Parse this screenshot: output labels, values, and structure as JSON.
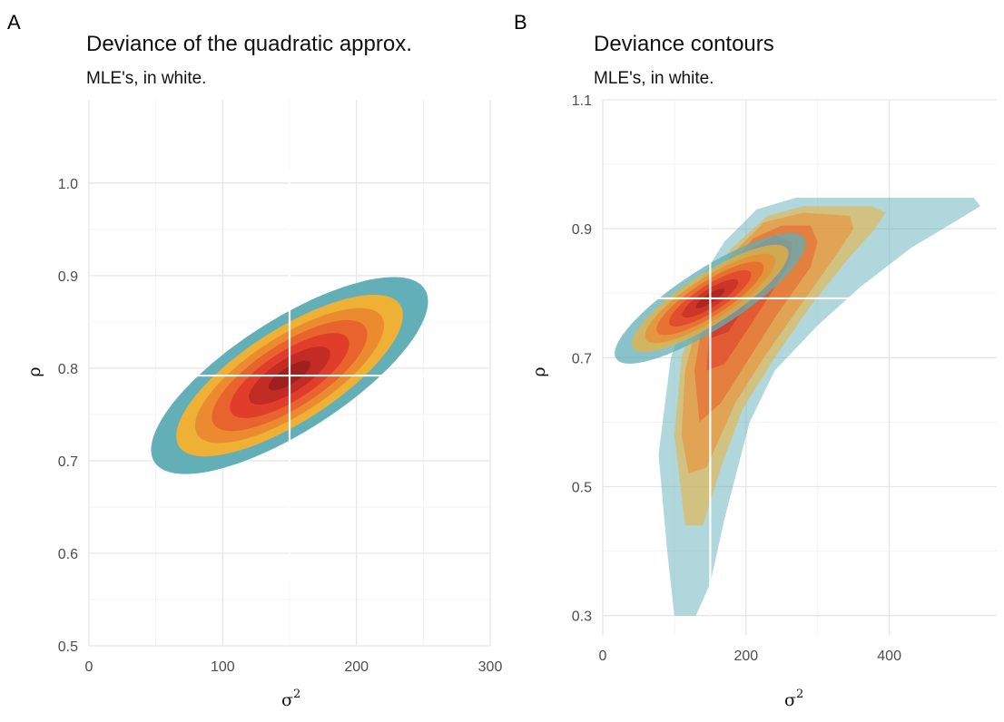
{
  "colors": {
    "levels": [
      "#62afb7",
      "#efb036",
      "#ec8a30",
      "#e8632d",
      "#e03e2b",
      "#c22c25",
      "#a11f1f",
      "#821719"
    ],
    "crosshair": "#ffffff"
  },
  "chart_data": [
    {
      "type": "contour",
      "tag": "A",
      "title": "Deviance of the quadratic approx.",
      "subtitle": "MLE's, in white.",
      "xlabel": "σ",
      "xlabel_sup": "2",
      "ylabel": "ρ",
      "xlim": [
        0,
        300
      ],
      "ylim": [
        0.5,
        1.09
      ],
      "xticks": [
        0,
        100,
        200,
        300
      ],
      "yticks": [
        0.5,
        0.6,
        0.7,
        0.8,
        0.9,
        1.0
      ],
      "ytick_labels": [
        "0.5",
        "0.6",
        "0.7",
        "0.8",
        "0.9",
        "1.0"
      ],
      "mle": {
        "sigma2": 150,
        "rho": 0.792
      },
      "crosshair": {
        "x_range": [
          40,
          260
        ],
        "y_range": [
          0.57,
          1.015
        ]
      },
      "contours": [
        {
          "level": 1,
          "shape": "ellipse",
          "cx": 150,
          "cy": 0.792,
          "sx": 135,
          "sy": 0.33,
          "rotate": 0.57,
          "skew": 0
        },
        {
          "level": 2,
          "shape": "ellipse",
          "cx": 150,
          "cy": 0.792,
          "sx": 112,
          "sy": 0.27,
          "rotate": 0.57,
          "skew": 0
        },
        {
          "level": 3,
          "shape": "ellipse",
          "cx": 150,
          "cy": 0.792,
          "sx": 94,
          "sy": 0.225,
          "rotate": 0.57,
          "skew": 0
        },
        {
          "level": 4,
          "shape": "ellipse",
          "cx": 150,
          "cy": 0.792,
          "sx": 77,
          "sy": 0.185,
          "rotate": 0.57,
          "skew": 0
        },
        {
          "level": 5,
          "shape": "ellipse",
          "cx": 150,
          "cy": 0.792,
          "sx": 59,
          "sy": 0.142,
          "rotate": 0.57,
          "skew": 0
        },
        {
          "level": 6,
          "shape": "ellipse",
          "cx": 150,
          "cy": 0.792,
          "sx": 40,
          "sy": 0.097,
          "rotate": 0.57,
          "skew": 0
        },
        {
          "level": 7,
          "shape": "ellipse",
          "cx": 150,
          "cy": 0.792,
          "sx": 20,
          "sy": 0.05,
          "rotate": 0.57,
          "skew": 0
        }
      ]
    },
    {
      "type": "contour",
      "tag": "B",
      "title": "Deviance contours",
      "subtitle": "MLE's, in white.",
      "xlabel": "σ",
      "xlabel_sup": "2",
      "ylabel": "ρ",
      "xlim": [
        0,
        550
      ],
      "ylim": [
        0.27,
        1.1
      ],
      "xticks": [
        0,
        200,
        400
      ],
      "yticks": [
        0.3,
        0.5,
        0.7,
        0.9,
        1.1
      ],
      "ytick_labels": [
        "0.3",
        "0.5",
        "0.7",
        "0.9",
        "1.1"
      ],
      "mle": {
        "sigma2": 150,
        "rho": 0.792
      },
      "crosshair": {
        "x_range": [
          40,
          400
        ],
        "y_range": [
          0.3,
          0.98
        ]
      },
      "exact_contours": [
        {
          "level": 1,
          "points": [
            [
              100,
              0.3
            ],
            [
              130,
              0.3
            ],
            [
              150,
              0.35
            ],
            [
              170,
              0.45
            ],
            [
              205,
              0.6
            ],
            [
              240,
              0.68
            ],
            [
              300,
              0.75
            ],
            [
              360,
              0.81
            ],
            [
              430,
              0.87
            ],
            [
              490,
              0.91
            ],
            [
              527,
              0.935
            ],
            [
              518,
              0.948
            ],
            [
              270,
              0.948
            ],
            [
              215,
              0.93
            ],
            [
              170,
              0.88
            ],
            [
              130,
              0.81
            ],
            [
              95,
              0.7
            ],
            [
              78,
              0.55
            ],
            [
              90,
              0.4
            ]
          ]
        },
        {
          "level": 2,
          "points": [
            [
              115,
              0.44
            ],
            [
              140,
              0.44
            ],
            [
              165,
              0.53
            ],
            [
              195,
              0.62
            ],
            [
              240,
              0.7
            ],
            [
              290,
              0.78
            ],
            [
              340,
              0.85
            ],
            [
              380,
              0.9
            ],
            [
              395,
              0.925
            ],
            [
              375,
              0.935
            ],
            [
              280,
              0.935
            ],
            [
              230,
              0.92
            ],
            [
              180,
              0.87
            ],
            [
              140,
              0.8
            ],
            [
              110,
              0.7
            ],
            [
              100,
              0.58
            ]
          ]
        },
        {
          "level": 3,
          "points": [
            [
              120,
              0.52
            ],
            [
              145,
              0.53
            ],
            [
              185,
              0.63
            ],
            [
              225,
              0.7
            ],
            [
              275,
              0.78
            ],
            [
              320,
              0.85
            ],
            [
              350,
              0.9
            ],
            [
              345,
              0.92
            ],
            [
              280,
              0.925
            ],
            [
              225,
              0.91
            ],
            [
              180,
              0.86
            ],
            [
              140,
              0.79
            ],
            [
              115,
              0.68
            ],
            [
              110,
              0.58
            ]
          ]
        },
        {
          "level": 4,
          "points": [
            [
              135,
              0.6
            ],
            [
              165,
              0.63
            ],
            [
              205,
              0.7
            ],
            [
              245,
              0.77
            ],
            [
              290,
              0.84
            ],
            [
              300,
              0.88
            ],
            [
              290,
              0.905
            ],
            [
              250,
              0.905
            ],
            [
              210,
              0.885
            ],
            [
              170,
              0.83
            ],
            [
              140,
              0.76
            ],
            [
              128,
              0.68
            ]
          ]
        },
        {
          "level": 5,
          "points": [
            [
              145,
              0.68
            ],
            [
              170,
              0.69
            ],
            [
              200,
              0.74
            ],
            [
              235,
              0.8
            ],
            [
              262,
              0.85
            ],
            [
              265,
              0.88
            ],
            [
              240,
              0.89
            ],
            [
              210,
              0.87
            ],
            [
              175,
              0.82
            ],
            [
              150,
              0.76
            ]
          ]
        },
        {
          "level": 6,
          "points": [
            [
              150,
              0.73
            ],
            [
              175,
              0.74
            ],
            [
              205,
              0.79
            ],
            [
              230,
              0.83
            ],
            [
              235,
              0.86
            ],
            [
              215,
              0.86
            ],
            [
              190,
              0.84
            ],
            [
              162,
              0.8
            ],
            [
              152,
              0.77
            ]
          ]
        },
        {
          "level": 7,
          "points": [
            [
              155,
              0.77
            ],
            [
              175,
              0.78
            ],
            [
              195,
              0.81
            ],
            [
              205,
              0.835
            ],
            [
              190,
              0.84
            ],
            [
              170,
              0.82
            ],
            [
              158,
              0.8
            ]
          ]
        }
      ],
      "quadratic_contours": [
        {
          "level": 1,
          "cx": 150,
          "cy": 0.792,
          "sx": 135,
          "sy": 0.33,
          "rotate": 0.57
        },
        {
          "level": 2,
          "cx": 150,
          "cy": 0.792,
          "sx": 112,
          "sy": 0.27,
          "rotate": 0.57
        },
        {
          "level": 3,
          "cx": 150,
          "cy": 0.792,
          "sx": 94,
          "sy": 0.225,
          "rotate": 0.57
        },
        {
          "level": 4,
          "cx": 150,
          "cy": 0.792,
          "sx": 77,
          "sy": 0.185,
          "rotate": 0.57
        },
        {
          "level": 5,
          "cx": 150,
          "cy": 0.792,
          "sx": 59,
          "sy": 0.142,
          "rotate": 0.57
        },
        {
          "level": 6,
          "cx": 150,
          "cy": 0.792,
          "sx": 40,
          "sy": 0.097,
          "rotate": 0.57
        },
        {
          "level": 7,
          "cx": 150,
          "cy": 0.792,
          "sx": 20,
          "sy": 0.05,
          "rotate": 0.57
        }
      ]
    }
  ]
}
